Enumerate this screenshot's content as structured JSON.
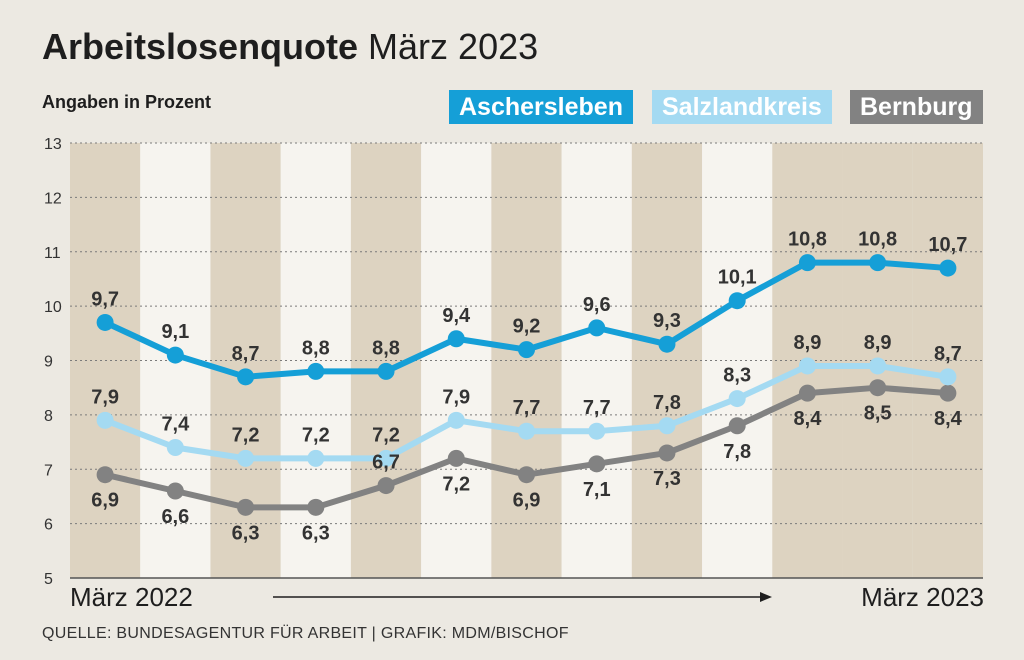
{
  "header": {
    "title_bold": "Arbeitslosenquote",
    "title_rest": " März 2023",
    "subtitle": "Angaben in Prozent"
  },
  "legend": [
    {
      "label": "Aschersleben",
      "color": "#159fd7"
    },
    {
      "label": "Salzlandkreis",
      "color": "#a4daf2"
    },
    {
      "label": "Bernburg",
      "color": "#828282"
    }
  ],
  "axis": {
    "x_start": "März 2022",
    "x_end": "März 2023"
  },
  "source": "QUELLE: BUNDESAGENTUR FÜR ARBEIT | GRAFIK: MDM/BISCHOF",
  "chart_data": {
    "type": "line",
    "title": "Arbeitslosenquote März 2023",
    "ylabel": "Angaben in Prozent",
    "ylim": [
      5,
      13
    ],
    "yticks": [
      5,
      6,
      7,
      8,
      9,
      10,
      11,
      12,
      13
    ],
    "points_count": 13,
    "series": [
      {
        "name": "Aschersleben",
        "color": "#159fd7",
        "values": [
          9.7,
          9.1,
          8.7,
          8.8,
          8.8,
          9.4,
          9.2,
          9.6,
          9.3,
          10.1,
          10.8,
          10.8,
          10.7
        ],
        "labels": [
          "9,7",
          "9,1",
          "8,7",
          "8,8",
          "8,8",
          "9,4",
          "9,2",
          "9,6",
          "9,3",
          "10,1",
          "10,8",
          "10,8",
          "10,7"
        ]
      },
      {
        "name": "Salzlandkreis",
        "color": "#a4daf2",
        "values": [
          7.9,
          7.4,
          7.2,
          7.2,
          7.2,
          7.9,
          7.7,
          7.7,
          7.8,
          8.3,
          8.9,
          8.9,
          8.7
        ],
        "labels": [
          "7,9",
          "7,4",
          "7,2",
          "7,2",
          "7,2",
          "7,9",
          "7,7",
          "7,7",
          "7,8",
          "8,3",
          "8,9",
          "8,9",
          "8,7"
        ]
      },
      {
        "name": "Bernburg",
        "color": "#828282",
        "values": [
          6.9,
          6.6,
          6.3,
          6.3,
          6.7,
          7.2,
          6.9,
          7.1,
          7.3,
          7.8,
          8.4,
          8.5,
          8.4
        ],
        "labels": [
          "6,9",
          "6,6",
          "6,3",
          "6,3",
          "6,7",
          "7,2",
          "6,9",
          "7,1",
          "7,3",
          "7,8",
          "8,4",
          "8,5",
          "8,4"
        ]
      }
    ],
    "grid": true,
    "legend_position": "top-right"
  }
}
